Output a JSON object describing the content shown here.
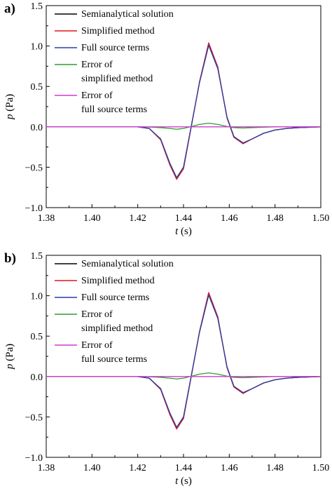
{
  "colors": {
    "semianalytical": "#000000",
    "simplified": "#e0141e",
    "full_source": "#2b3fa8",
    "error_simplified": "#2e9e2e",
    "error_full": "#d23ad2"
  },
  "chart_data": [
    {
      "panel_label": "a)",
      "type": "line",
      "xlabel_italic": "t",
      "xlabel_unit": " (s)",
      "ylabel_italic": "p",
      "ylabel_unit": " (Pa)",
      "xlim": [
        1.38,
        1.5
      ],
      "ylim": [
        -1.0,
        1.5
      ],
      "xticks": [
        "1.38",
        "1.40",
        "1.42",
        "1.44",
        "1.46",
        "1.48",
        "1.50"
      ],
      "yticks": [
        "1.5",
        "1.0",
        "0.5",
        "0.0",
        "−0.5",
        "−1.0"
      ],
      "legend_position": "top-left",
      "grid": false,
      "x": [
        1.38,
        1.42,
        1.425,
        1.43,
        1.434,
        1.437,
        1.44,
        1.443,
        1.447,
        1.451,
        1.455,
        1.459,
        1.462,
        1.466,
        1.47,
        1.475,
        1.48,
        1.485,
        1.49,
        1.5
      ],
      "series": [
        {
          "name": "Semianalytical solution",
          "legend": [
            "Semianalytical solution"
          ],
          "color_key": "semianalytical",
          "values": [
            0,
            0,
            -0.02,
            -0.15,
            -0.45,
            -0.63,
            -0.5,
            -0.05,
            0.55,
            1.01,
            0.72,
            0.12,
            -0.12,
            -0.2,
            -0.15,
            -0.08,
            -0.04,
            -0.02,
            -0.01,
            0
          ]
        },
        {
          "name": "Simplified method",
          "legend": [
            "Simplified method"
          ],
          "color_key": "simplified",
          "values": [
            0,
            0,
            -0.02,
            -0.16,
            -0.47,
            -0.65,
            -0.52,
            -0.06,
            0.56,
            1.04,
            0.74,
            0.11,
            -0.13,
            -0.21,
            -0.15,
            -0.08,
            -0.04,
            -0.02,
            -0.01,
            0
          ]
        },
        {
          "name": "Full source terms",
          "legend": [
            "Full source terms"
          ],
          "color_key": "full_source",
          "values": [
            0,
            0,
            -0.02,
            -0.15,
            -0.45,
            -0.63,
            -0.5,
            -0.05,
            0.55,
            1.01,
            0.72,
            0.12,
            -0.12,
            -0.2,
            -0.15,
            -0.08,
            -0.04,
            -0.02,
            -0.01,
            0
          ]
        },
        {
          "name": "Error of simplified method",
          "legend": [
            "Error of",
            "simplified method"
          ],
          "color_key": "error_simplified",
          "values": [
            0,
            0,
            -0.003,
            -0.01,
            -0.02,
            -0.03,
            -0.02,
            0.0,
            0.03,
            0.045,
            0.03,
            0.005,
            -0.01,
            -0.015,
            -0.01,
            -0.005,
            0,
            0,
            0,
            0
          ]
        },
        {
          "name": "Error of full source terms",
          "legend": [
            "Error of",
            "full source terms"
          ],
          "color_key": "error_full",
          "values": [
            0,
            0,
            0,
            0,
            0,
            0,
            0,
            0,
            0,
            0,
            0,
            0,
            0,
            0,
            0,
            0,
            0,
            0,
            0,
            0
          ]
        }
      ]
    },
    {
      "panel_label": "b)",
      "type": "line",
      "xlabel_italic": "t",
      "xlabel_unit": " (s)",
      "ylabel_italic": "p",
      "ylabel_unit": " (Pa)",
      "xlim": [
        1.38,
        1.5
      ],
      "ylim": [
        -1.0,
        1.5
      ],
      "xticks": [
        "1.38",
        "1.40",
        "1.42",
        "1.44",
        "1.46",
        "1.48",
        "1.50"
      ],
      "yticks": [
        "1.5",
        "1.0",
        "0.5",
        "0.0",
        "−0.5",
        "−1.0"
      ],
      "legend_position": "top-left",
      "grid": false,
      "x": [
        1.38,
        1.42,
        1.425,
        1.43,
        1.434,
        1.437,
        1.44,
        1.443,
        1.447,
        1.451,
        1.455,
        1.459,
        1.462,
        1.466,
        1.47,
        1.475,
        1.48,
        1.485,
        1.49,
        1.5
      ],
      "series": [
        {
          "name": "Semianalytical solution",
          "legend": [
            "Semianalytical solution"
          ],
          "color_key": "semianalytical",
          "values": [
            0,
            0,
            -0.02,
            -0.15,
            -0.45,
            -0.63,
            -0.5,
            -0.05,
            0.55,
            1.01,
            0.72,
            0.12,
            -0.12,
            -0.2,
            -0.15,
            -0.08,
            -0.04,
            -0.02,
            -0.01,
            0
          ]
        },
        {
          "name": "Simplified method",
          "legend": [
            "Simplified method"
          ],
          "color_key": "simplified",
          "values": [
            0,
            0,
            -0.02,
            -0.16,
            -0.47,
            -0.65,
            -0.52,
            -0.06,
            0.56,
            1.04,
            0.74,
            0.11,
            -0.13,
            -0.21,
            -0.15,
            -0.08,
            -0.04,
            -0.02,
            -0.01,
            0
          ]
        },
        {
          "name": "Full source terms",
          "legend": [
            "Full source terms"
          ],
          "color_key": "full_source",
          "values": [
            0,
            0,
            -0.02,
            -0.15,
            -0.45,
            -0.63,
            -0.5,
            -0.05,
            0.55,
            1.01,
            0.72,
            0.12,
            -0.12,
            -0.2,
            -0.15,
            -0.08,
            -0.04,
            -0.02,
            -0.01,
            0
          ]
        },
        {
          "name": "Error of simplified method",
          "legend": [
            "Error of",
            "simplified method"
          ],
          "color_key": "error_simplified",
          "values": [
            0,
            0,
            -0.003,
            -0.01,
            -0.02,
            -0.03,
            -0.02,
            0.0,
            0.03,
            0.045,
            0.03,
            0.005,
            -0.01,
            -0.015,
            -0.01,
            -0.005,
            0,
            0,
            0,
            0
          ]
        },
        {
          "name": "Error of full source terms",
          "legend": [
            "Error of",
            "full source terms"
          ],
          "color_key": "error_full",
          "values": [
            0,
            0,
            0,
            0,
            0,
            0,
            0,
            0,
            0,
            0,
            0,
            0,
            0,
            0,
            0,
            0,
            0,
            0,
            0,
            0
          ]
        }
      ]
    }
  ]
}
